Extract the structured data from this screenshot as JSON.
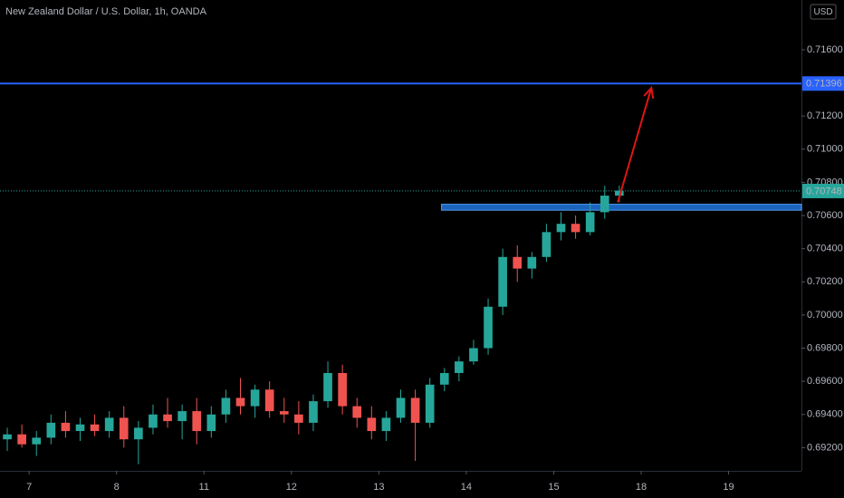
{
  "chart_data": {
    "type": "candlestick",
    "title": "New Zealand Dollar / U.S. Dollar, 1h, OANDA",
    "currency": "USD",
    "up_color": "#26a69a",
    "down_color": "#ef5350",
    "xlim": [
      0,
      55
    ],
    "xticks": [
      {
        "value": 2,
        "label": "7"
      },
      {
        "value": 8,
        "label": "8"
      },
      {
        "value": 14,
        "label": "11"
      },
      {
        "value": 20,
        "label": "12"
      },
      {
        "value": 26,
        "label": "13"
      },
      {
        "value": 32,
        "label": "14"
      },
      {
        "value": 38,
        "label": "15"
      },
      {
        "value": 44,
        "label": "18"
      },
      {
        "value": 50,
        "label": "19"
      }
    ],
    "ylim": [
      0.6906,
      0.719
    ],
    "yticks": [
      {
        "value": 0.692,
        "label": "0.69200"
      },
      {
        "value": 0.694,
        "label": "0.69400"
      },
      {
        "value": 0.696,
        "label": "0.69600"
      },
      {
        "value": 0.698,
        "label": "0.69800"
      },
      {
        "value": 0.7,
        "label": "0.70000"
      },
      {
        "value": 0.702,
        "label": "0.70200"
      },
      {
        "value": 0.704,
        "label": "0.70400"
      },
      {
        "value": 0.706,
        "label": "0.70600"
      },
      {
        "value": 0.708,
        "label": "0.70800"
      },
      {
        "value": 0.71,
        "label": "0.71000"
      },
      {
        "value": 0.712,
        "label": "0.71200"
      },
      {
        "value": 0.716,
        "label": "0.71600"
      }
    ],
    "open": [
      0.6925,
      0.6928,
      0.6922,
      0.6926,
      0.6935,
      0.693,
      0.6934,
      0.693,
      0.6938,
      0.6925,
      0.6932,
      0.694,
      0.6936,
      0.6942,
      0.693,
      0.694,
      0.695,
      0.6945,
      0.6955,
      0.6942,
      0.694,
      0.6935,
      0.6948,
      0.6965,
      0.6945,
      0.6938,
      0.693,
      0.6938,
      0.695,
      0.6935,
      0.6958,
      0.6965,
      0.6972,
      0.698,
      0.7005,
      0.7035,
      0.7028,
      0.7035,
      0.705,
      0.7055,
      0.705,
      0.7062,
      0.7072
    ],
    "high": [
      0.6932,
      0.6934,
      0.693,
      0.694,
      0.6942,
      0.6938,
      0.694,
      0.6942,
      0.6945,
      0.6936,
      0.6946,
      0.695,
      0.6946,
      0.695,
      0.6945,
      0.6955,
      0.6962,
      0.6958,
      0.696,
      0.695,
      0.6948,
      0.6952,
      0.6972,
      0.697,
      0.695,
      0.6945,
      0.6942,
      0.6955,
      0.6955,
      0.6962,
      0.6968,
      0.6975,
      0.6985,
      0.701,
      0.704,
      0.7042,
      0.7038,
      0.7055,
      0.7062,
      0.706,
      0.7068,
      0.7078,
      0.7078
    ],
    "low": [
      0.6918,
      0.692,
      0.6915,
      0.6922,
      0.6926,
      0.6924,
      0.6927,
      0.6926,
      0.692,
      0.691,
      0.6928,
      0.6932,
      0.6925,
      0.6922,
      0.6926,
      0.6935,
      0.694,
      0.6938,
      0.6938,
      0.6935,
      0.6928,
      0.693,
      0.6944,
      0.694,
      0.6932,
      0.6925,
      0.6924,
      0.6935,
      0.6912,
      0.6932,
      0.6954,
      0.696,
      0.697,
      0.6976,
      0.7,
      0.702,
      0.7022,
      0.7032,
      0.7045,
      0.7046,
      0.7048,
      0.7058,
      0.7068
    ],
    "close": [
      0.6928,
      0.6922,
      0.6926,
      0.6935,
      0.693,
      0.6934,
      0.693,
      0.6938,
      0.6925,
      0.6932,
      0.694,
      0.6936,
      0.6942,
      0.693,
      0.694,
      0.695,
      0.6945,
      0.6955,
      0.6942,
      0.694,
      0.6935,
      0.6948,
      0.6965,
      0.6945,
      0.6938,
      0.693,
      0.6938,
      0.695,
      0.6935,
      0.6958,
      0.6965,
      0.6972,
      0.698,
      0.7005,
      0.7035,
      0.7028,
      0.7035,
      0.705,
      0.7055,
      0.705,
      0.7062,
      0.7072,
      0.7075
    ],
    "lines": [
      {
        "value": 0.71396,
        "label": "0.71396",
        "color": "#2962ff",
        "dotted": false
      },
      {
        "value": 0.70748,
        "label": "0.70748",
        "color": "#26a69a",
        "dotted": true
      }
    ],
    "zone": {
      "start": 30.3,
      "low": 0.70632,
      "high": 0.70668,
      "color": "#1e6fd0"
    },
    "arrow": {
      "x": [
        42.4,
        44.7
      ],
      "y": [
        0.7068,
        0.7137
      ],
      "color": "#e01515"
    }
  }
}
